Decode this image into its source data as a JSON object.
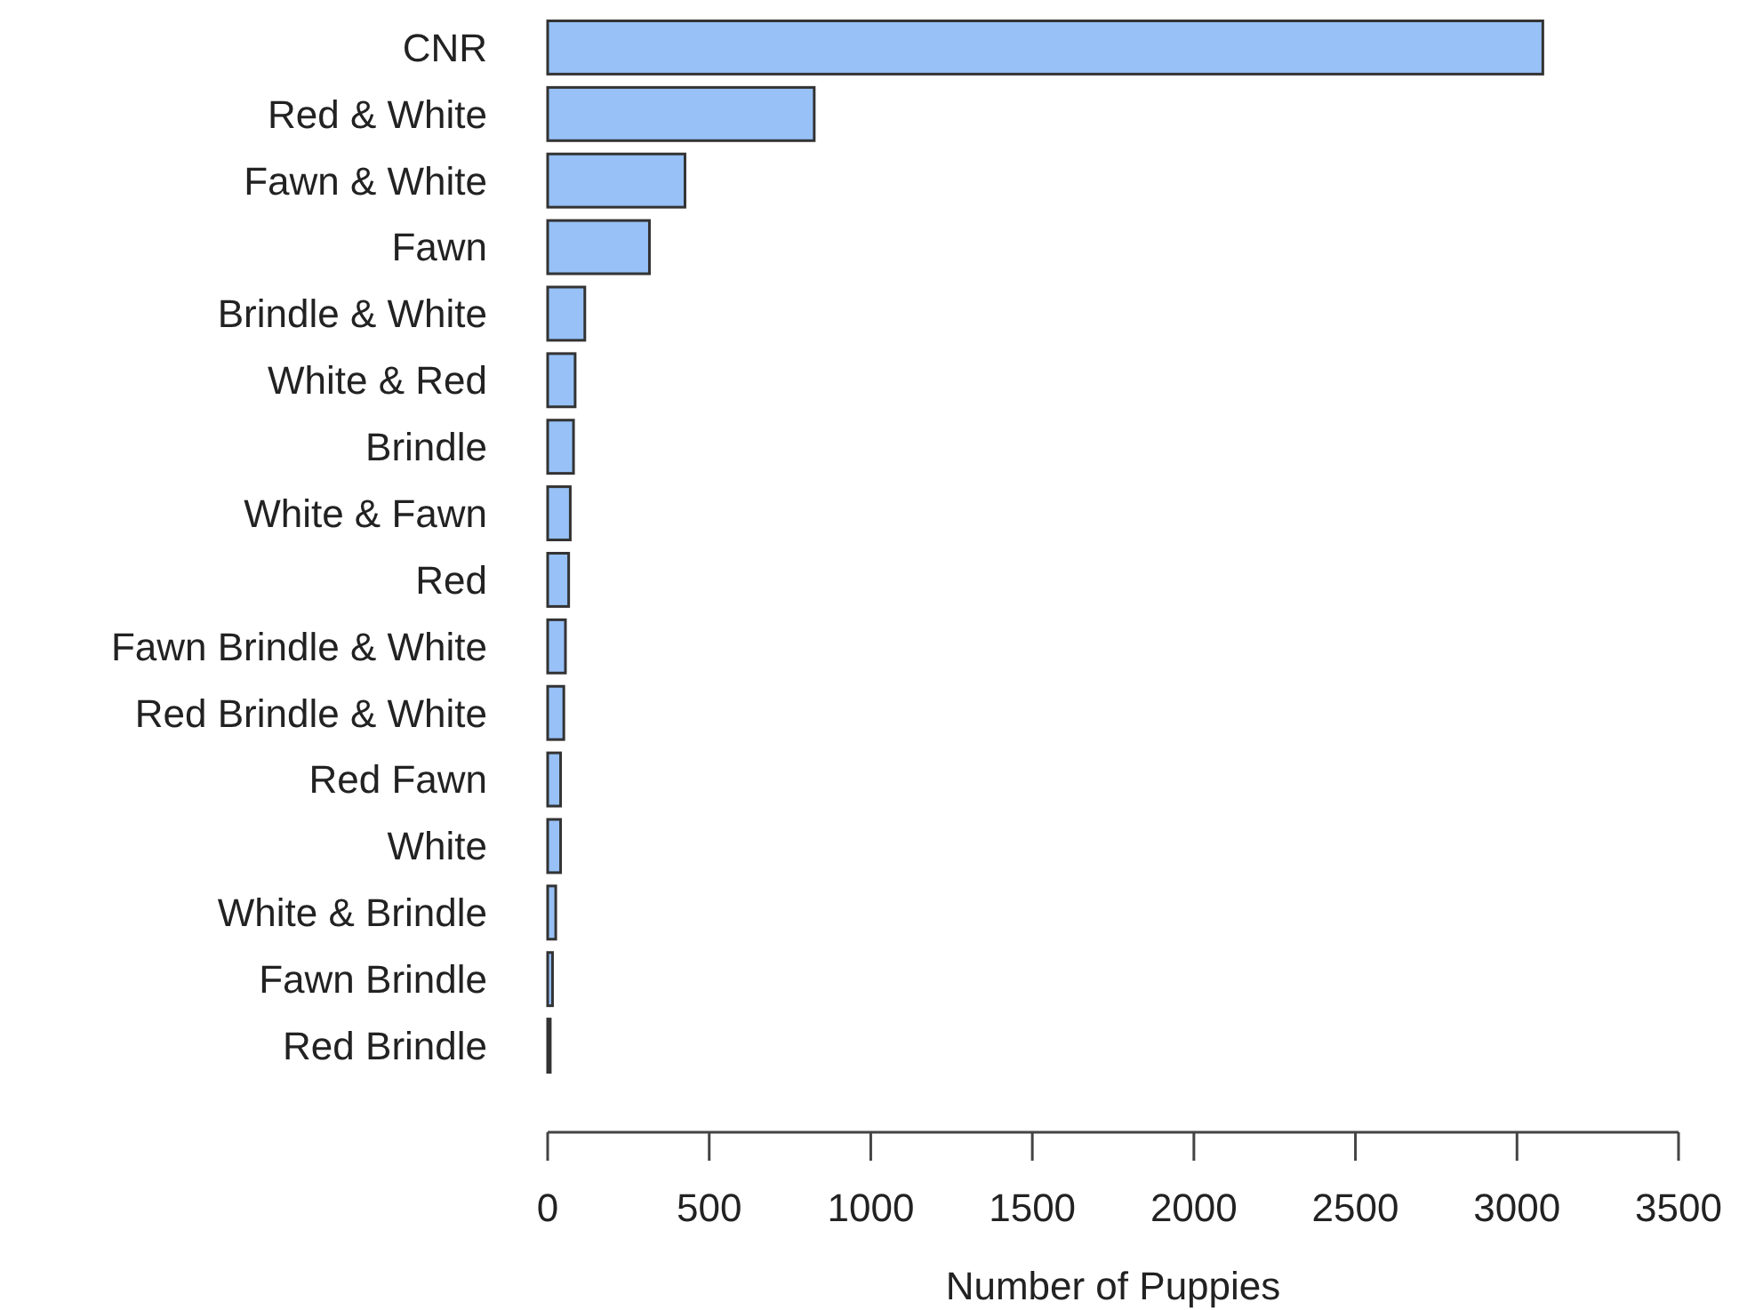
{
  "chart_data": {
    "type": "bar",
    "orientation": "horizontal",
    "xlabel": "Number of Puppies",
    "categories": [
      "CNR",
      "Red & White",
      "Fawn & White",
      "Fawn",
      "Brindle & White",
      "White & Red",
      "Brindle",
      "White & Fawn",
      "Red",
      "Fawn Brindle & White",
      "Red Brindle & White",
      "Red Fawn",
      "White",
      "White & Brindle",
      "Fawn Brindle",
      "Red Brindle"
    ],
    "values": [
      3080,
      825,
      425,
      315,
      115,
      85,
      80,
      70,
      65,
      55,
      50,
      40,
      40,
      25,
      15,
      8
    ],
    "color": "#97c1f7",
    "xlim": [
      0,
      3500
    ],
    "xticks": [
      0,
      500,
      1000,
      1500,
      2000,
      2500,
      3000,
      3500
    ],
    "grid": false
  }
}
